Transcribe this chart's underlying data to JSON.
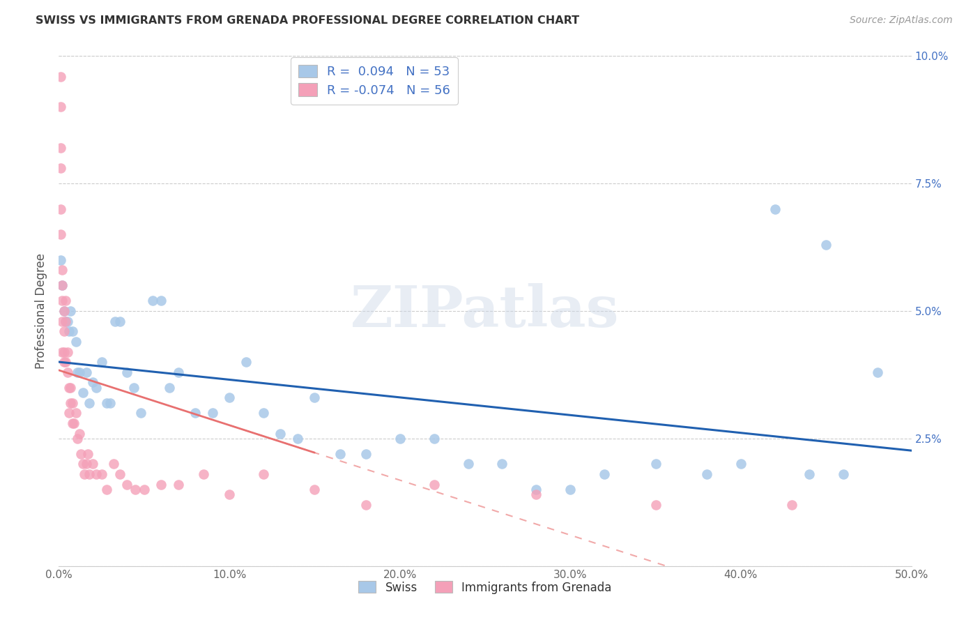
{
  "title": "SWISS VS IMMIGRANTS FROM GRENADA PROFESSIONAL DEGREE CORRELATION CHART",
  "source": "Source: ZipAtlas.com",
  "ylabel": "Professional Degree",
  "xlim": [
    0.0,
    0.5
  ],
  "ylim": [
    0.0,
    0.1
  ],
  "xticks": [
    0.0,
    0.1,
    0.2,
    0.3,
    0.4,
    0.5
  ],
  "yticks": [
    0.0,
    0.025,
    0.05,
    0.075,
    0.1
  ],
  "ytick_labels_right": [
    "",
    "2.5%",
    "5.0%",
    "7.5%",
    "10.0%"
  ],
  "xtick_labels": [
    "0.0%",
    "10.0%",
    "20.0%",
    "30.0%",
    "40.0%",
    "50.0%"
  ],
  "legend_r_swiss": "0.094",
  "legend_n_swiss": "53",
  "legend_r_grenada": "-0.074",
  "legend_n_grenada": "56",
  "swiss_color": "#a8c8e8",
  "grenada_color": "#f4a0b8",
  "trendline_swiss_color": "#2060b0",
  "trendline_grenada_color": "#e87070",
  "watermark_text": "ZIPatlas",
  "swiss_x": [
    0.001,
    0.002,
    0.003,
    0.004,
    0.005,
    0.006,
    0.007,
    0.008,
    0.01,
    0.011,
    0.012,
    0.014,
    0.016,
    0.018,
    0.02,
    0.022,
    0.025,
    0.028,
    0.03,
    0.033,
    0.036,
    0.04,
    0.044,
    0.048,
    0.055,
    0.06,
    0.065,
    0.07,
    0.08,
    0.09,
    0.1,
    0.11,
    0.12,
    0.13,
    0.14,
    0.15,
    0.165,
    0.18,
    0.2,
    0.22,
    0.24,
    0.26,
    0.28,
    0.3,
    0.32,
    0.35,
    0.38,
    0.4,
    0.42,
    0.44,
    0.45,
    0.46,
    0.48
  ],
  "swiss_y": [
    0.06,
    0.055,
    0.05,
    0.048,
    0.048,
    0.046,
    0.05,
    0.046,
    0.044,
    0.038,
    0.038,
    0.034,
    0.038,
    0.032,
    0.036,
    0.035,
    0.04,
    0.032,
    0.032,
    0.048,
    0.048,
    0.038,
    0.035,
    0.03,
    0.052,
    0.052,
    0.035,
    0.038,
    0.03,
    0.03,
    0.033,
    0.04,
    0.03,
    0.026,
    0.025,
    0.033,
    0.022,
    0.022,
    0.025,
    0.025,
    0.02,
    0.02,
    0.015,
    0.015,
    0.018,
    0.02,
    0.018,
    0.02,
    0.07,
    0.018,
    0.063,
    0.018,
    0.038
  ],
  "grenada_x": [
    0.001,
    0.001,
    0.001,
    0.001,
    0.001,
    0.001,
    0.002,
    0.002,
    0.002,
    0.002,
    0.002,
    0.003,
    0.003,
    0.003,
    0.003,
    0.004,
    0.004,
    0.004,
    0.005,
    0.005,
    0.006,
    0.006,
    0.007,
    0.007,
    0.008,
    0.008,
    0.009,
    0.01,
    0.011,
    0.012,
    0.013,
    0.014,
    0.015,
    0.016,
    0.017,
    0.018,
    0.02,
    0.022,
    0.025,
    0.028,
    0.032,
    0.036,
    0.04,
    0.045,
    0.05,
    0.06,
    0.07,
    0.085,
    0.1,
    0.12,
    0.15,
    0.18,
    0.22,
    0.28,
    0.35,
    0.43
  ],
  "grenada_y": [
    0.096,
    0.09,
    0.082,
    0.078,
    0.07,
    0.065,
    0.058,
    0.055,
    0.052,
    0.048,
    0.042,
    0.05,
    0.046,
    0.042,
    0.04,
    0.052,
    0.048,
    0.04,
    0.042,
    0.038,
    0.035,
    0.03,
    0.035,
    0.032,
    0.032,
    0.028,
    0.028,
    0.03,
    0.025,
    0.026,
    0.022,
    0.02,
    0.018,
    0.02,
    0.022,
    0.018,
    0.02,
    0.018,
    0.018,
    0.015,
    0.02,
    0.018,
    0.016,
    0.015,
    0.015,
    0.016,
    0.016,
    0.018,
    0.014,
    0.018,
    0.015,
    0.012,
    0.016,
    0.014,
    0.012,
    0.012
  ]
}
